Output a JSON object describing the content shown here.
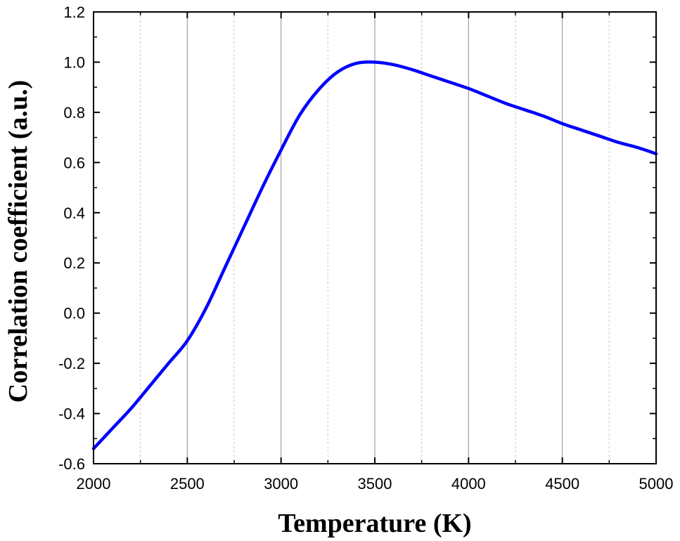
{
  "chart_data": {
    "type": "line",
    "xlabel": "Temperature (K)",
    "ylabel": "Correlation coefficient (a.u.)",
    "xlim": [
      2000,
      5000
    ],
    "ylim": [
      -0.6,
      1.2
    ],
    "x_ticks": [
      2000,
      2500,
      3000,
      3500,
      4000,
      4500,
      5000
    ],
    "x_tick_labels": [
      "2000",
      "2500",
      "3000",
      "3500",
      "4000",
      "4500",
      "5000"
    ],
    "y_ticks": [
      -0.6,
      -0.4,
      -0.2,
      0.0,
      0.2,
      0.4,
      0.6,
      0.8,
      1.0,
      1.2
    ],
    "y_tick_labels": [
      "-0.6",
      "-0.4",
      "-0.2",
      "0.0",
      "0.2",
      "0.4",
      "0.6",
      "0.8",
      "1.0",
      "1.2"
    ],
    "grid": {
      "x_major": true,
      "x_minor": true,
      "y": false
    },
    "series": [
      {
        "color": "#0000ff",
        "x": [
          2000,
          2100,
          2200,
          2300,
          2400,
          2500,
          2600,
          2700,
          2800,
          2900,
          3000,
          3100,
          3200,
          3300,
          3400,
          3500,
          3600,
          3700,
          3800,
          3900,
          4000,
          4100,
          4200,
          4300,
          4400,
          4500,
          4600,
          4700,
          4800,
          4900,
          5000
        ],
        "y": [
          -0.54,
          -0.46,
          -0.38,
          -0.29,
          -0.2,
          -0.11,
          0.02,
          0.18,
          0.34,
          0.5,
          0.65,
          0.79,
          0.89,
          0.96,
          0.995,
          1.0,
          0.99,
          0.97,
          0.945,
          0.92,
          0.895,
          0.865,
          0.835,
          0.81,
          0.785,
          0.755,
          0.73,
          0.705,
          0.68,
          0.66,
          0.635
        ]
      }
    ]
  }
}
